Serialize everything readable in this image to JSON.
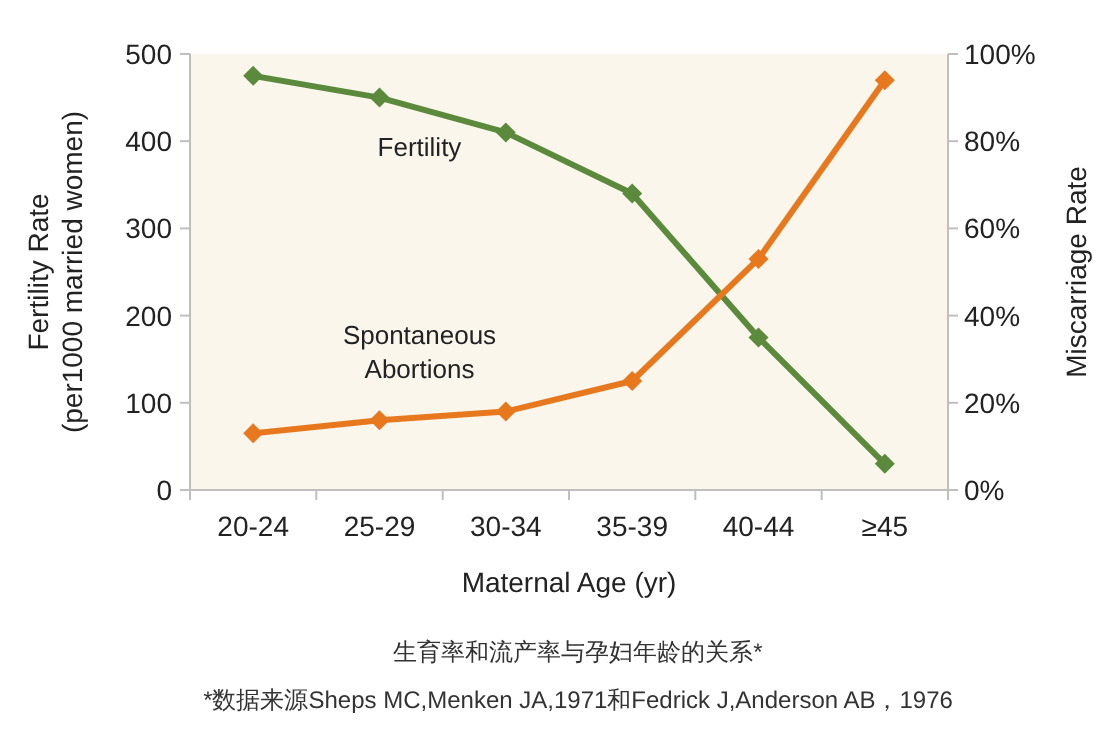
{
  "chart_data": {
    "type": "line",
    "xlabel": "Maternal Age (yr)",
    "ylabel": "Fertility Rate\n(per1000 married women)",
    "y2label": "Miscarriage Rate",
    "categories": [
      "20-24",
      "25-29",
      "30-34",
      "35-39",
      "40-44",
      "≥45"
    ],
    "series": [
      {
        "name": "Fertility",
        "color": "#5b8a3c",
        "values": [
          475,
          450,
          410,
          340,
          175,
          30
        ]
      },
      {
        "name": "Spontaneous\nAbortions",
        "color": "#e8781e",
        "axis": "y2",
        "values": [
          13,
          16,
          18,
          25,
          53,
          94
        ]
      }
    ],
    "ylim": [
      0,
      500
    ],
    "yticks": [
      0,
      100,
      200,
      300,
      400,
      500
    ],
    "y2lim": [
      0,
      100
    ],
    "y2ticks": [
      {
        "value": 0,
        "label": "0%"
      },
      {
        "value": 20,
        "label": "20%"
      },
      {
        "value": 40,
        "label": "40%"
      },
      {
        "value": 60,
        "label": "60%"
      },
      {
        "value": 80,
        "label": "80%"
      },
      {
        "value": 100,
        "label": "100%"
      }
    ],
    "marker": "diamond",
    "line_style": "solid",
    "grid": false,
    "annotations": [
      "生育率和流产率与孕妇年龄的关系*",
      "*数据来源Sheps MC,Menken JA,1971和Fedrick J,Anderson AB，1976"
    ]
  }
}
